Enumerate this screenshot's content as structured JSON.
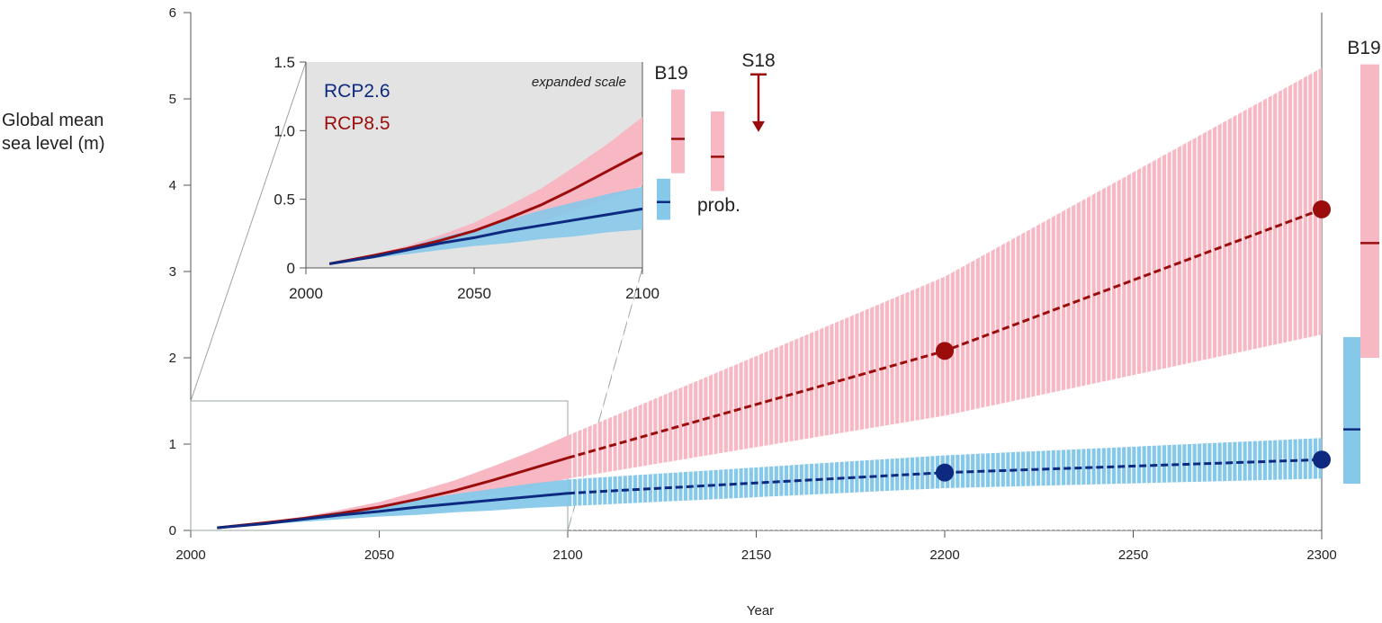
{
  "chart_data": {
    "type": "line",
    "ylabel_line1": "Global mean",
    "ylabel_line2": "sea level (m)",
    "xlabel": "Year",
    "xlim": [
      2000,
      2300
    ],
    "ylim": [
      0,
      6
    ],
    "xticks": [
      "2000",
      "2050",
      "2100",
      "2150",
      "2200",
      "2250",
      "2300"
    ],
    "yticks": [
      "0",
      "1",
      "2",
      "3",
      "4",
      "5",
      "6"
    ],
    "colors": {
      "rcp85_line": "#9b0d0d",
      "rcp85_band": "#f7b8c4",
      "rcp26_line": "#0d2a80",
      "rcp26_band": "#86c8e9",
      "inset_bg": "#e3e3e3"
    },
    "series": [
      {
        "name": "RCP2.6",
        "x": [
          2007,
          2020,
          2030,
          2040,
          2050,
          2060,
          2070,
          2080,
          2090,
          2100,
          2200,
          2300
        ],
        "median": [
          0.03,
          0.08,
          0.13,
          0.18,
          0.22,
          0.27,
          0.31,
          0.35,
          0.39,
          0.43,
          0.67,
          0.82
        ],
        "upper": [
          0.03,
          0.09,
          0.15,
          0.22,
          0.28,
          0.35,
          0.42,
          0.48,
          0.54,
          0.59,
          0.87,
          1.07
        ],
        "lower": [
          0.03,
          0.07,
          0.1,
          0.13,
          0.16,
          0.18,
          0.21,
          0.23,
          0.26,
          0.28,
          0.49,
          0.6
        ],
        "markers": [
          {
            "x": 2200,
            "y": 0.67
          },
          {
            "x": 2300,
            "y": 0.82
          }
        ]
      },
      {
        "name": "RCP8.5",
        "x": [
          2007,
          2020,
          2030,
          2040,
          2050,
          2060,
          2070,
          2080,
          2090,
          2100,
          2200,
          2300
        ],
        "median": [
          0.03,
          0.09,
          0.14,
          0.2,
          0.27,
          0.36,
          0.46,
          0.58,
          0.71,
          0.84,
          2.08,
          3.72
        ],
        "upper": [
          0.03,
          0.1,
          0.16,
          0.24,
          0.33,
          0.45,
          0.58,
          0.74,
          0.91,
          1.1,
          2.94,
          5.36
        ],
        "lower": [
          0.03,
          0.08,
          0.12,
          0.16,
          0.21,
          0.27,
          0.34,
          0.42,
          0.5,
          0.6,
          1.33,
          2.27
        ],
        "markers": [
          {
            "x": 2200,
            "y": 2.08
          },
          {
            "x": 2300,
            "y": 3.72
          }
        ]
      }
    ],
    "b19_2300": {
      "label": "B19",
      "rcp85": {
        "low": 2.0,
        "median": 3.33,
        "high": 5.4
      },
      "rcp26": {
        "low": 0.54,
        "median": 1.17,
        "high": 2.24
      }
    },
    "inset": {
      "annotation": "expanded scale",
      "xlim": [
        2000,
        2100
      ],
      "ylim": [
        0,
        1.5
      ],
      "xticks": [
        "2000",
        "2050",
        "2100"
      ],
      "yticks": [
        "0",
        "0.5",
        "1.0",
        "1.5"
      ],
      "legend": [
        "RCP2.6",
        "RCP8.5"
      ],
      "b19_label": "B19",
      "b19_rcp85": {
        "low": 0.69,
        "median": 0.94,
        "high": 1.3
      },
      "b19_rcp26": {
        "low": 0.35,
        "median": 0.48,
        "high": 0.65
      },
      "prob_label": "prob.",
      "prob_rcp85": {
        "low": 0.56,
        "median": 0.81,
        "high": 1.14
      },
      "s18_label": "S18",
      "s18": {
        "top": 1.41,
        "arrow_to": 0.99
      }
    }
  }
}
